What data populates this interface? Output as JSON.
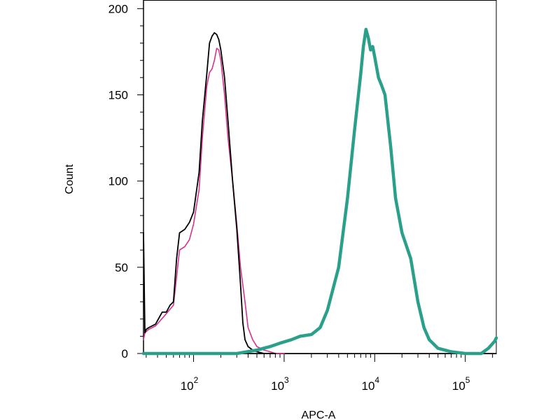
{
  "chart_data": {
    "type": "line",
    "title": "",
    "xlabel": "APC-A",
    "ylabel": "Count",
    "xscale": "log",
    "xlim": [
      28,
      220000
    ],
    "ylim": [
      0,
      205
    ],
    "grid": false,
    "legend": "none",
    "y_ticks": [
      {
        "value": 0,
        "label": "0"
      },
      {
        "value": 50,
        "label": "50"
      },
      {
        "value": 100,
        "label": "100"
      },
      {
        "value": 150,
        "label": "150"
      },
      {
        "value": 200,
        "label": "200"
      }
    ],
    "x_ticks": [
      {
        "value": 100,
        "base": "10",
        "exp": "2"
      },
      {
        "value": 1000,
        "base": "10",
        "exp": "3"
      },
      {
        "value": 10000,
        "base": "10",
        "exp": "4"
      },
      {
        "value": 100000,
        "base": "10",
        "exp": "5"
      }
    ],
    "series": [
      {
        "color": "#d5318f",
        "x": [
          28,
          29,
          32,
          38,
          48,
          60,
          70,
          80,
          90,
          100,
          115,
          125,
          140,
          150,
          160,
          170,
          180,
          190,
          200,
          220,
          240,
          270,
          300,
          330,
          370,
          400,
          450,
          500,
          600,
          700,
          800,
          1000
        ],
        "y": [
          8,
          12,
          14,
          16,
          22,
          28,
          60,
          62,
          66,
          75,
          95,
          125,
          155,
          163,
          165,
          170,
          177,
          176,
          170,
          150,
          125,
          100,
          75,
          50,
          30,
          15,
          8,
          4,
          2,
          1,
          0,
          0
        ]
      },
      {
        "color": "#000000",
        "x": [
          28,
          29,
          30,
          32,
          38,
          45,
          50,
          55,
          60,
          65,
          70,
          80,
          90,
          100,
          115,
          125,
          140,
          150,
          160,
          170,
          180,
          190,
          200,
          220,
          240,
          270,
          300,
          330,
          350,
          370,
          400,
          450,
          500,
          600,
          700,
          800
        ],
        "y": [
          70,
          12,
          14,
          15,
          17,
          24,
          24,
          28,
          30,
          55,
          70,
          72,
          76,
          82,
          105,
          135,
          162,
          180,
          184,
          186,
          185,
          182,
          176,
          160,
          135,
          100,
          72,
          40,
          18,
          8,
          4,
          2,
          1,
          0,
          0,
          0
        ]
      },
      {
        "color": "#2aa08a",
        "x": [
          28,
          300,
          500,
          700,
          900,
          1200,
          1500,
          2000,
          2500,
          3000,
          4000,
          5000,
          6000,
          7000,
          7500,
          8000,
          8500,
          9000,
          9500,
          10000,
          11000,
          12000,
          13000,
          15000,
          17000,
          20000,
          25000,
          30000,
          35000,
          40000,
          50000,
          70000,
          100000,
          150000,
          180000,
          210000,
          220000
        ],
        "y": [
          0,
          0,
          2,
          4,
          6,
          8,
          10,
          11,
          15,
          25,
          50,
          90,
          130,
          162,
          178,
          188,
          183,
          176,
          178,
          172,
          160,
          155,
          150,
          120,
          90,
          70,
          55,
          30,
          15,
          8,
          3,
          1,
          0,
          0,
          3,
          7,
          9
        ]
      }
    ]
  }
}
